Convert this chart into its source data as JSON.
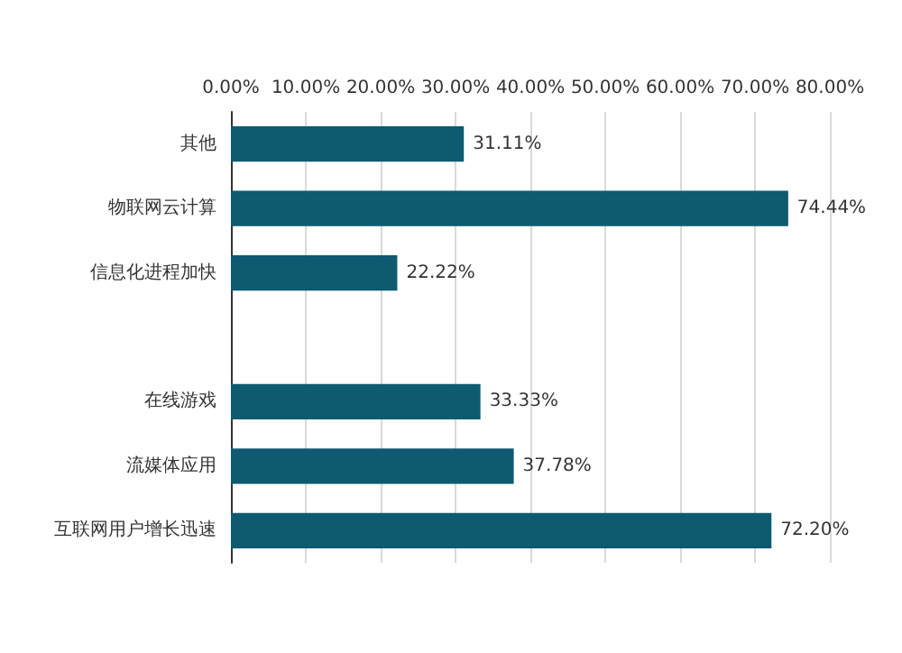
{
  "chart_data": {
    "type": "bar",
    "orientation": "horizontal",
    "categories": [
      "其他",
      "物联网云计算",
      "信息化进程加快",
      null,
      "在线游戏",
      "流媒体应用",
      "互联网用户增长迅速"
    ],
    "values": [
      31.11,
      74.44,
      22.22,
      null,
      33.33,
      37.78,
      72.2
    ],
    "value_labels": [
      "31.11%",
      "74.44%",
      "22.22%",
      null,
      "33.33%",
      "37.78%",
      "72.20%"
    ],
    "color": "#0e5a70",
    "xlim": [
      0,
      80
    ],
    "xticks": [
      {
        "value": 0,
        "label": "0.00%"
      },
      {
        "value": 10,
        "label": "10.00%"
      },
      {
        "value": 20,
        "label": "20.00%"
      },
      {
        "value": 30,
        "label": "30.00%"
      },
      {
        "value": 40,
        "label": "40.00%"
      },
      {
        "value": 50,
        "label": "50.00%"
      },
      {
        "value": 60,
        "label": "60.00%"
      },
      {
        "value": 70,
        "label": "70.00%"
      },
      {
        "value": 80,
        "label": "80.00%"
      }
    ],
    "grid": "x"
  }
}
